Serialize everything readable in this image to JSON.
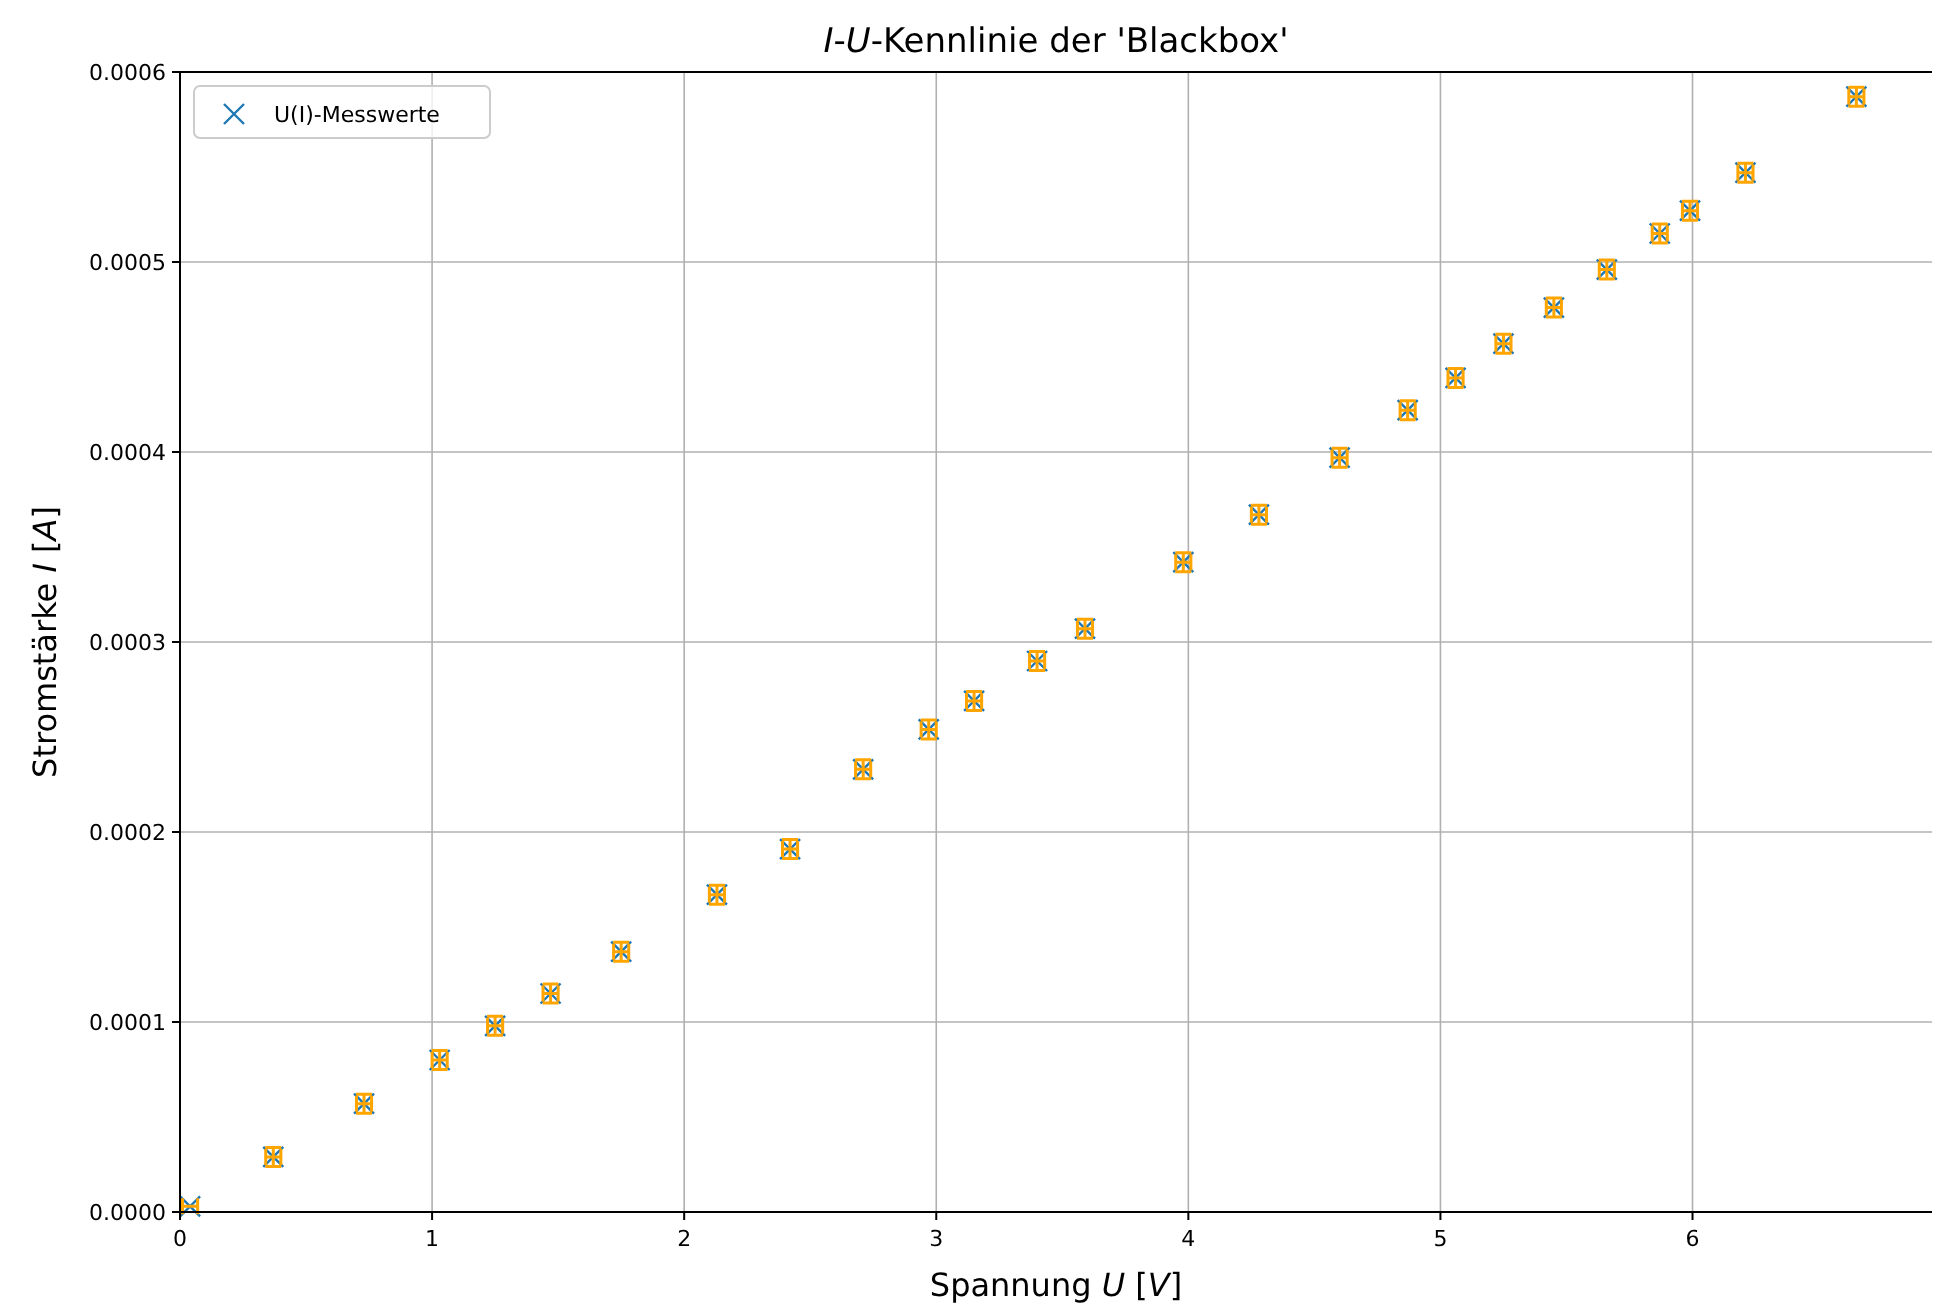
{
  "chart_data": {
    "type": "scatter",
    "title": "I-U-Kennlinie der 'Blackbox'",
    "xlabel": "Spannung U [V]",
    "ylabel": "Stromstärke I [A]",
    "x": [
      0.04,
      0.37,
      0.73,
      1.03,
      1.25,
      1.47,
      1.75,
      2.13,
      2.42,
      2.71,
      2.97,
      3.15,
      3.4,
      3.59,
      3.98,
      4.28,
      4.6,
      4.87,
      5.06,
      5.25,
      5.45,
      5.66,
      5.87,
      5.99,
      6.21,
      6.65
    ],
    "series": [
      {
        "name": "U(I)-Messwerte",
        "color": "#1f77b4",
        "values": [
          3e-06,
          2.9e-05,
          5.7e-05,
          8e-05,
          9.8e-05,
          0.000115,
          0.000137,
          0.000167,
          0.000191,
          0.000233,
          0.000254,
          0.000269,
          0.00029,
          0.000307,
          0.000342,
          0.000367,
          0.000397,
          0.000422,
          0.000439,
          0.000457,
          0.000476,
          0.000496,
          0.000515,
          0.000527,
          0.000547,
          0.000587
        ],
        "errors": [
          null,
          5e-06,
          5e-06,
          5e-06,
          5e-06,
          5e-06,
          5e-06,
          5e-06,
          5e-06,
          5e-06,
          5e-06,
          5e-06,
          5e-06,
          5e-06,
          5e-06,
          5e-06,
          5e-06,
          5e-06,
          5e-06,
          5e-06,
          5e-06,
          5e-06,
          5e-06,
          5e-06,
          5e-06,
          5e-06
        ],
        "xerrors": [
          0.03,
          0.03,
          0.03,
          0.03,
          0.03,
          0.03,
          0.03,
          0.03,
          0.03,
          0.03,
          0.03,
          0.03,
          0.03,
          0.03,
          0.03,
          0.03,
          0.03,
          0.03,
          0.03,
          0.03,
          0.03,
          0.03,
          0.03,
          0.03,
          0.03,
          0.03
        ]
      }
    ],
    "xlim": [
      0,
      6.95
    ],
    "xticks": [
      0,
      1,
      2,
      3,
      4,
      5,
      6
    ],
    "ylim": [
      0,
      0.0006
    ],
    "yticks": [
      {
        "value": 0,
        "label": "0.0000"
      },
      {
        "value": 0.0001,
        "label": "0.0001"
      },
      {
        "value": 0.0002,
        "label": "0.0002"
      },
      {
        "value": 0.0003,
        "label": "0.0003"
      },
      {
        "value": 0.0004,
        "label": "0.0004"
      },
      {
        "value": 0.0005,
        "label": "0.0005"
      },
      {
        "value": 0.0006,
        "label": "0.0006"
      }
    ],
    "grid": true,
    "legend": "top left",
    "marker": "cross"
  }
}
